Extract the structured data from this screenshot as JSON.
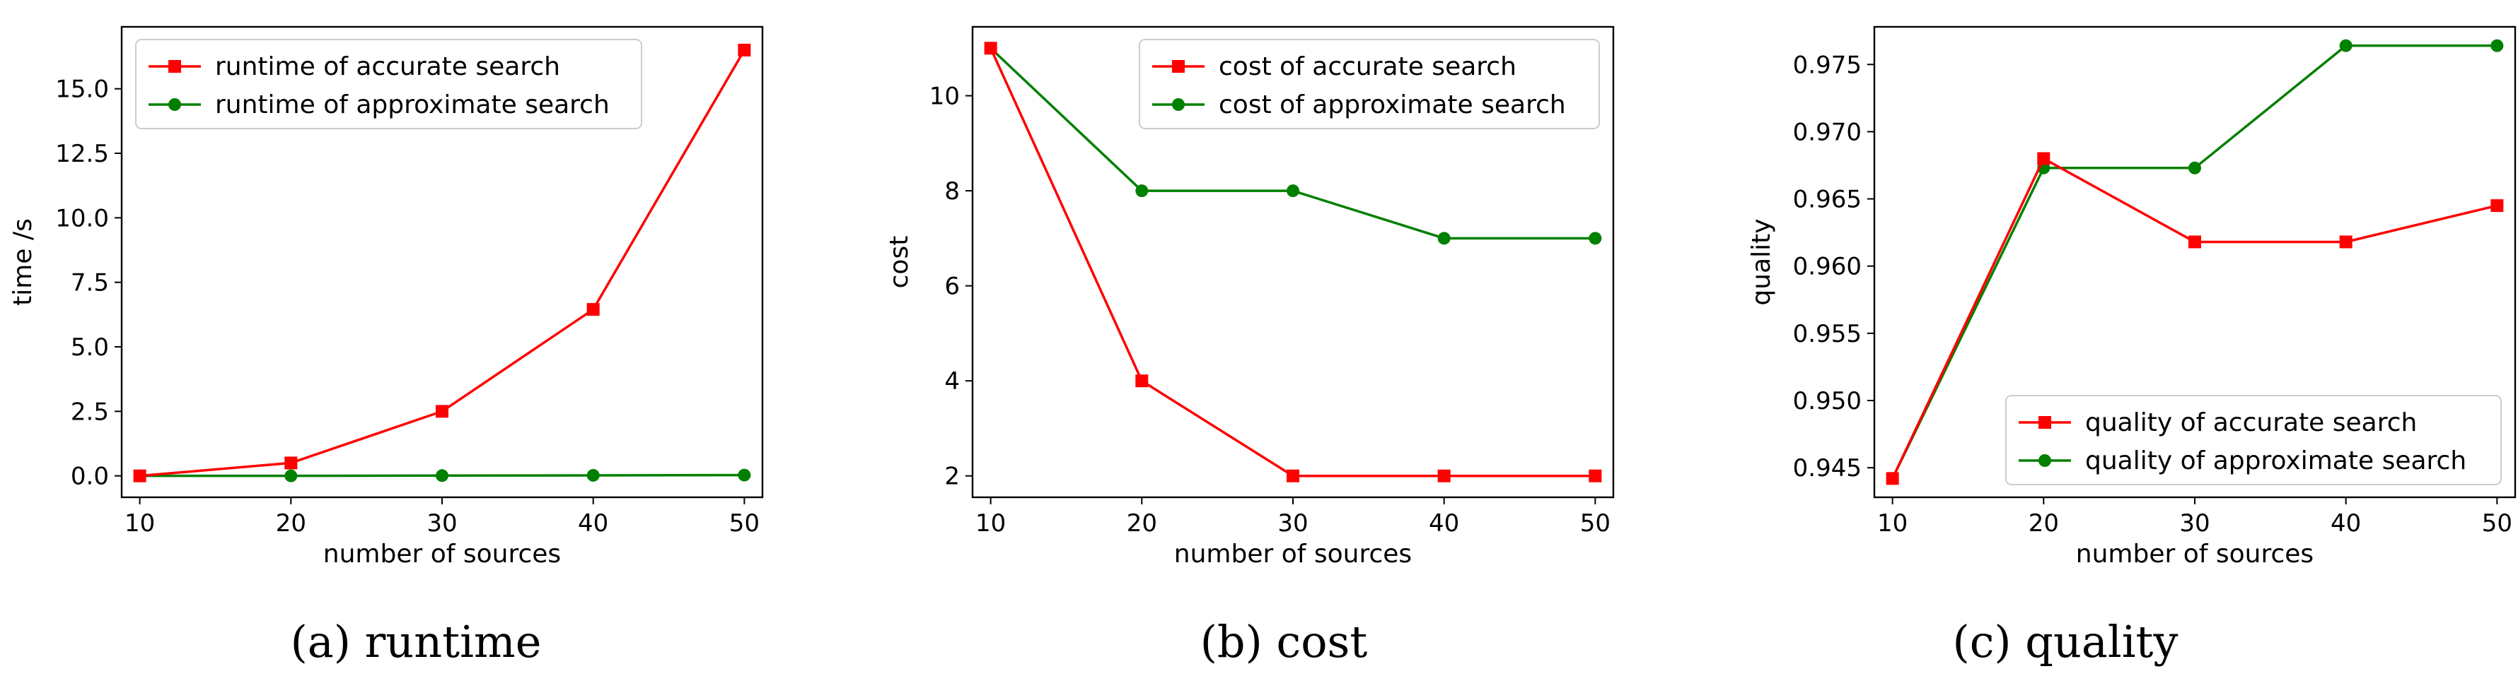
{
  "colors": {
    "accurate": "#ff0000",
    "approximate": "#008000",
    "axis": "#000000",
    "background": "#ffffff"
  },
  "chart_data": [
    {
      "type": "line",
      "caption": "(a)  runtime",
      "xlabel": "number of sources",
      "ylabel": "time /s",
      "x": [
        10,
        20,
        30,
        40,
        50
      ],
      "xlim": [
        8.8,
        51.2
      ],
      "ylim": [
        -0.83,
        17.4
      ],
      "xticks": [
        10,
        20,
        30,
        40,
        50
      ],
      "yticks": [
        0.0,
        2.5,
        5.0,
        7.5,
        10.0,
        12.5,
        15.0
      ],
      "ytick_labels": [
        "0.0",
        "2.5",
        "5.0",
        "7.5",
        "10.0",
        "12.5",
        "15.0"
      ],
      "legend_position": "upper-left",
      "grid": false,
      "series": [
        {
          "name": "runtime of accurate search",
          "marker": "square",
          "color": "#ff0000",
          "values": [
            0.0,
            0.5,
            2.5,
            6.45,
            16.5
          ]
        },
        {
          "name": "runtime of approximate search",
          "marker": "circle",
          "color": "#008000",
          "values": [
            0.0,
            0.0,
            0.01,
            0.02,
            0.03
          ]
        }
      ]
    },
    {
      "type": "line",
      "caption": "(b)  cost",
      "xlabel": "number of sources",
      "ylabel": "cost",
      "x": [
        10,
        20,
        30,
        40,
        50
      ],
      "xlim": [
        8.8,
        51.2
      ],
      "ylim": [
        1.55,
        11.45
      ],
      "xticks": [
        10,
        20,
        30,
        40,
        50
      ],
      "yticks": [
        2,
        4,
        6,
        8,
        10
      ],
      "ytick_labels": [
        "2",
        "4",
        "6",
        "8",
        "10"
      ],
      "legend_position": "upper-right",
      "grid": false,
      "series": [
        {
          "name": "cost of accurate search",
          "marker": "square",
          "color": "#ff0000",
          "values": [
            11,
            4,
            2,
            2,
            2
          ]
        },
        {
          "name": "cost of approximate search",
          "marker": "circle",
          "color": "#008000",
          "values": [
            11,
            8,
            8,
            7,
            7
          ]
        }
      ]
    },
    {
      "type": "line",
      "caption": "(c)  quality",
      "xlabel": "number of sources",
      "ylabel": "quality",
      "x": [
        10,
        20,
        30,
        40,
        50
      ],
      "xlim": [
        8.8,
        51.2
      ],
      "ylim": [
        0.9428,
        0.9778
      ],
      "xticks": [
        10,
        20,
        30,
        40,
        50
      ],
      "yticks": [
        0.945,
        0.95,
        0.955,
        0.96,
        0.965,
        0.97,
        0.975
      ],
      "ytick_labels": [
        "0.945",
        "0.950",
        "0.955",
        "0.960",
        "0.965",
        "0.970",
        "0.975"
      ],
      "legend_position": "lower-right",
      "grid": false,
      "series": [
        {
          "name": "quality of accurate search",
          "marker": "square",
          "color": "#ff0000",
          "values": [
            0.9442,
            0.968,
            0.9618,
            0.9618,
            0.9645
          ]
        },
        {
          "name": "quality of approximate search",
          "marker": "circle",
          "color": "#008000",
          "values": [
            0.9442,
            0.9673,
            0.9673,
            0.9764,
            0.9764
          ]
        }
      ]
    }
  ]
}
